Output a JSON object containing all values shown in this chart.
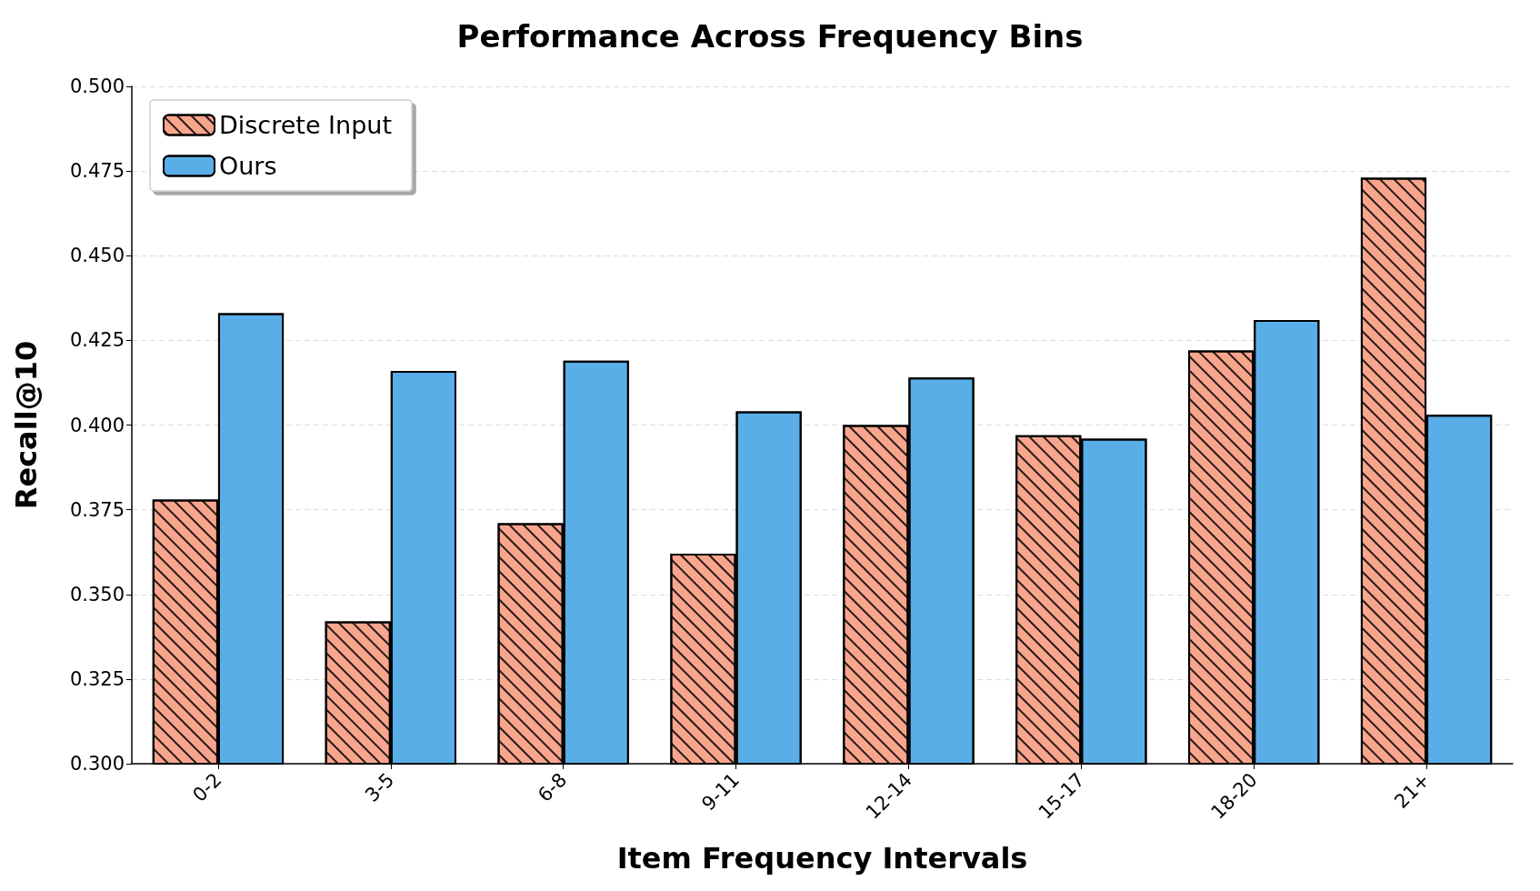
{
  "chart_data": {
    "type": "bar",
    "title": "Performance Across Frequency Bins",
    "xlabel": "Item Frequency Intervals",
    "ylabel": "Recall@10",
    "categories": [
      "0-2",
      "3-5",
      "6-8",
      "9-11",
      "12-14",
      "15-17",
      "18-20",
      "21+"
    ],
    "series": [
      {
        "name": "Discrete Input",
        "color": "#f7a58c",
        "values": [
          0.378,
          0.342,
          0.371,
          0.362,
          0.4,
          0.397,
          0.422,
          0.473
        ]
      },
      {
        "name": "Ours",
        "color": "#5aaee8",
        "values": [
          0.433,
          0.416,
          0.419,
          0.404,
          0.414,
          0.396,
          0.431,
          0.403
        ]
      }
    ],
    "ylim": [
      0.3,
      0.5
    ],
    "yticks": [
      {
        "value": 0.3,
        "label": "0.300"
      },
      {
        "value": 0.325,
        "label": "0.325"
      },
      {
        "value": 0.35,
        "label": "0.350"
      },
      {
        "value": 0.375,
        "label": "0.375"
      },
      {
        "value": 0.4,
        "label": "0.400"
      },
      {
        "value": 0.425,
        "label": "0.425"
      },
      {
        "value": 0.45,
        "label": "0.450"
      },
      {
        "value": 0.475,
        "label": "0.475"
      },
      {
        "value": 0.5,
        "label": "0.500"
      }
    ],
    "grid": "y",
    "legend": "top left"
  }
}
